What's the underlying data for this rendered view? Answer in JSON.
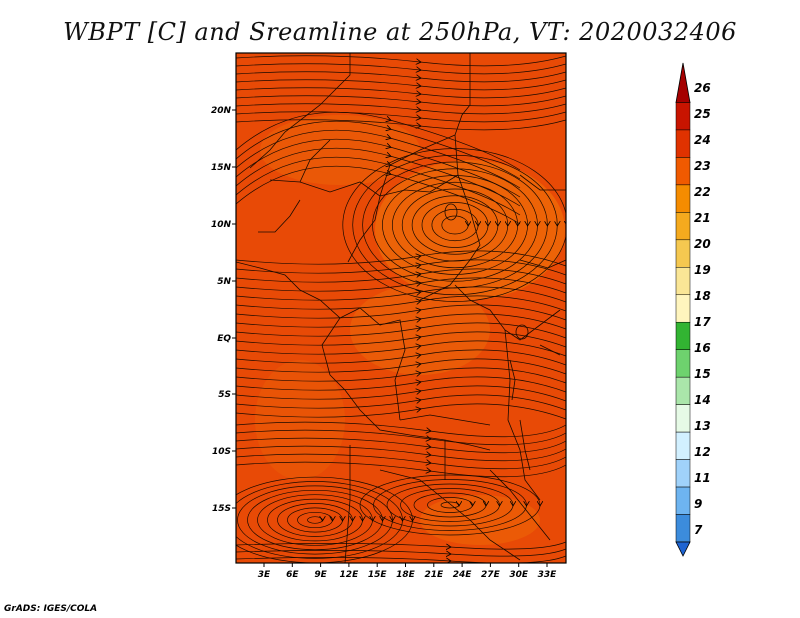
{
  "title": "WBPT [C] and Sreamline at 250hPa, VT: 2020032406",
  "footer": "GrADS: IGES/COLA",
  "lat_labels": [
    "20N",
    "15N",
    "10N",
    "5N",
    "EQ",
    "5S",
    "10S",
    "15S"
  ],
  "lon_labels": [
    "3E",
    "6E",
    "9E",
    "12E",
    "15E",
    "18E",
    "21E",
    "24E",
    "27E",
    "30E",
    "33E"
  ],
  "colorbar": {
    "labels": [
      "26",
      "25",
      "24",
      "23",
      "22",
      "21",
      "20",
      "19",
      "18",
      "17",
      "16",
      "15",
      "14",
      "13",
      "12",
      "11",
      "9",
      "7"
    ],
    "colors": [
      "#a50000",
      "#c81400",
      "#e03200",
      "#f05a00",
      "#f58c00",
      "#f5aa1e",
      "#f5c850",
      "#fae696",
      "#fff5be",
      "#32b432",
      "#6ed26e",
      "#aae6aa",
      "#e6fae6",
      "#d2f0ff",
      "#a0d2fa",
      "#6eb4f0",
      "#3c8cdc",
      "#1e64d2"
    ]
  },
  "field_color": "#e84a06"
}
